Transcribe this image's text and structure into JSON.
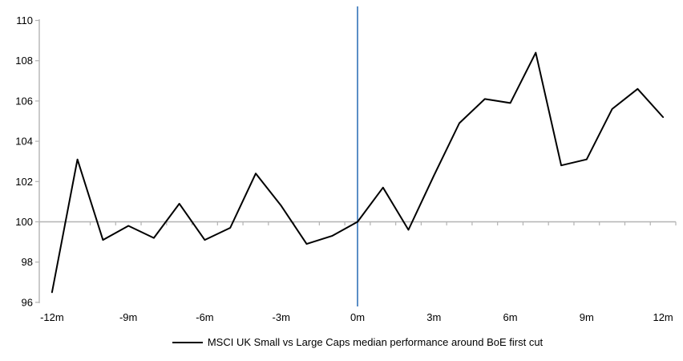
{
  "chart_data": {
    "type": "line",
    "title": "",
    "x": [
      -12,
      -11,
      -10,
      -9,
      -8,
      -7,
      -6,
      -5,
      -4,
      -3,
      -2,
      -1,
      0,
      1,
      2,
      3,
      4,
      5,
      6,
      7,
      8,
      9,
      10,
      11,
      12
    ],
    "series": [
      {
        "name": "MSCI UK Small vs Large Caps median performance around BoE first cut",
        "color": "#000000",
        "values": [
          96.5,
          103.1,
          99.1,
          99.8,
          99.2,
          100.9,
          99.1,
          99.7,
          102.4,
          100.8,
          98.9,
          99.3,
          100.0,
          101.7,
          99.6,
          102.3,
          104.9,
          106.1,
          105.9,
          108.4,
          102.8,
          103.1,
          105.6,
          106.6,
          105.2
        ]
      }
    ],
    "x_tick_positions": [
      -12,
      -9,
      -6,
      -3,
      0,
      3,
      6,
      9,
      12
    ],
    "x_tick_labels": [
      "-12m",
      "-9m",
      "-6m",
      "-3m",
      "0m",
      "3m",
      "6m",
      "9m",
      "12m"
    ],
    "y_ticks": [
      96,
      98,
      100,
      102,
      104,
      106,
      108,
      110
    ],
    "ylim": [
      96,
      110
    ],
    "xlim": [
      -12.5,
      12.5
    ],
    "baseline_value": 100,
    "event_line_x": 0,
    "grid": "off",
    "legend_position": "bottom",
    "colors": {
      "series_line": "#000000",
      "event_line": "#5B8EC6",
      "axis": "#B3B3B3",
      "baseline": "#B3B3B3",
      "tick_text": "#000000"
    }
  },
  "legend": {
    "label": "MSCI UK Small vs Large Caps median performance around BoE first cut"
  }
}
